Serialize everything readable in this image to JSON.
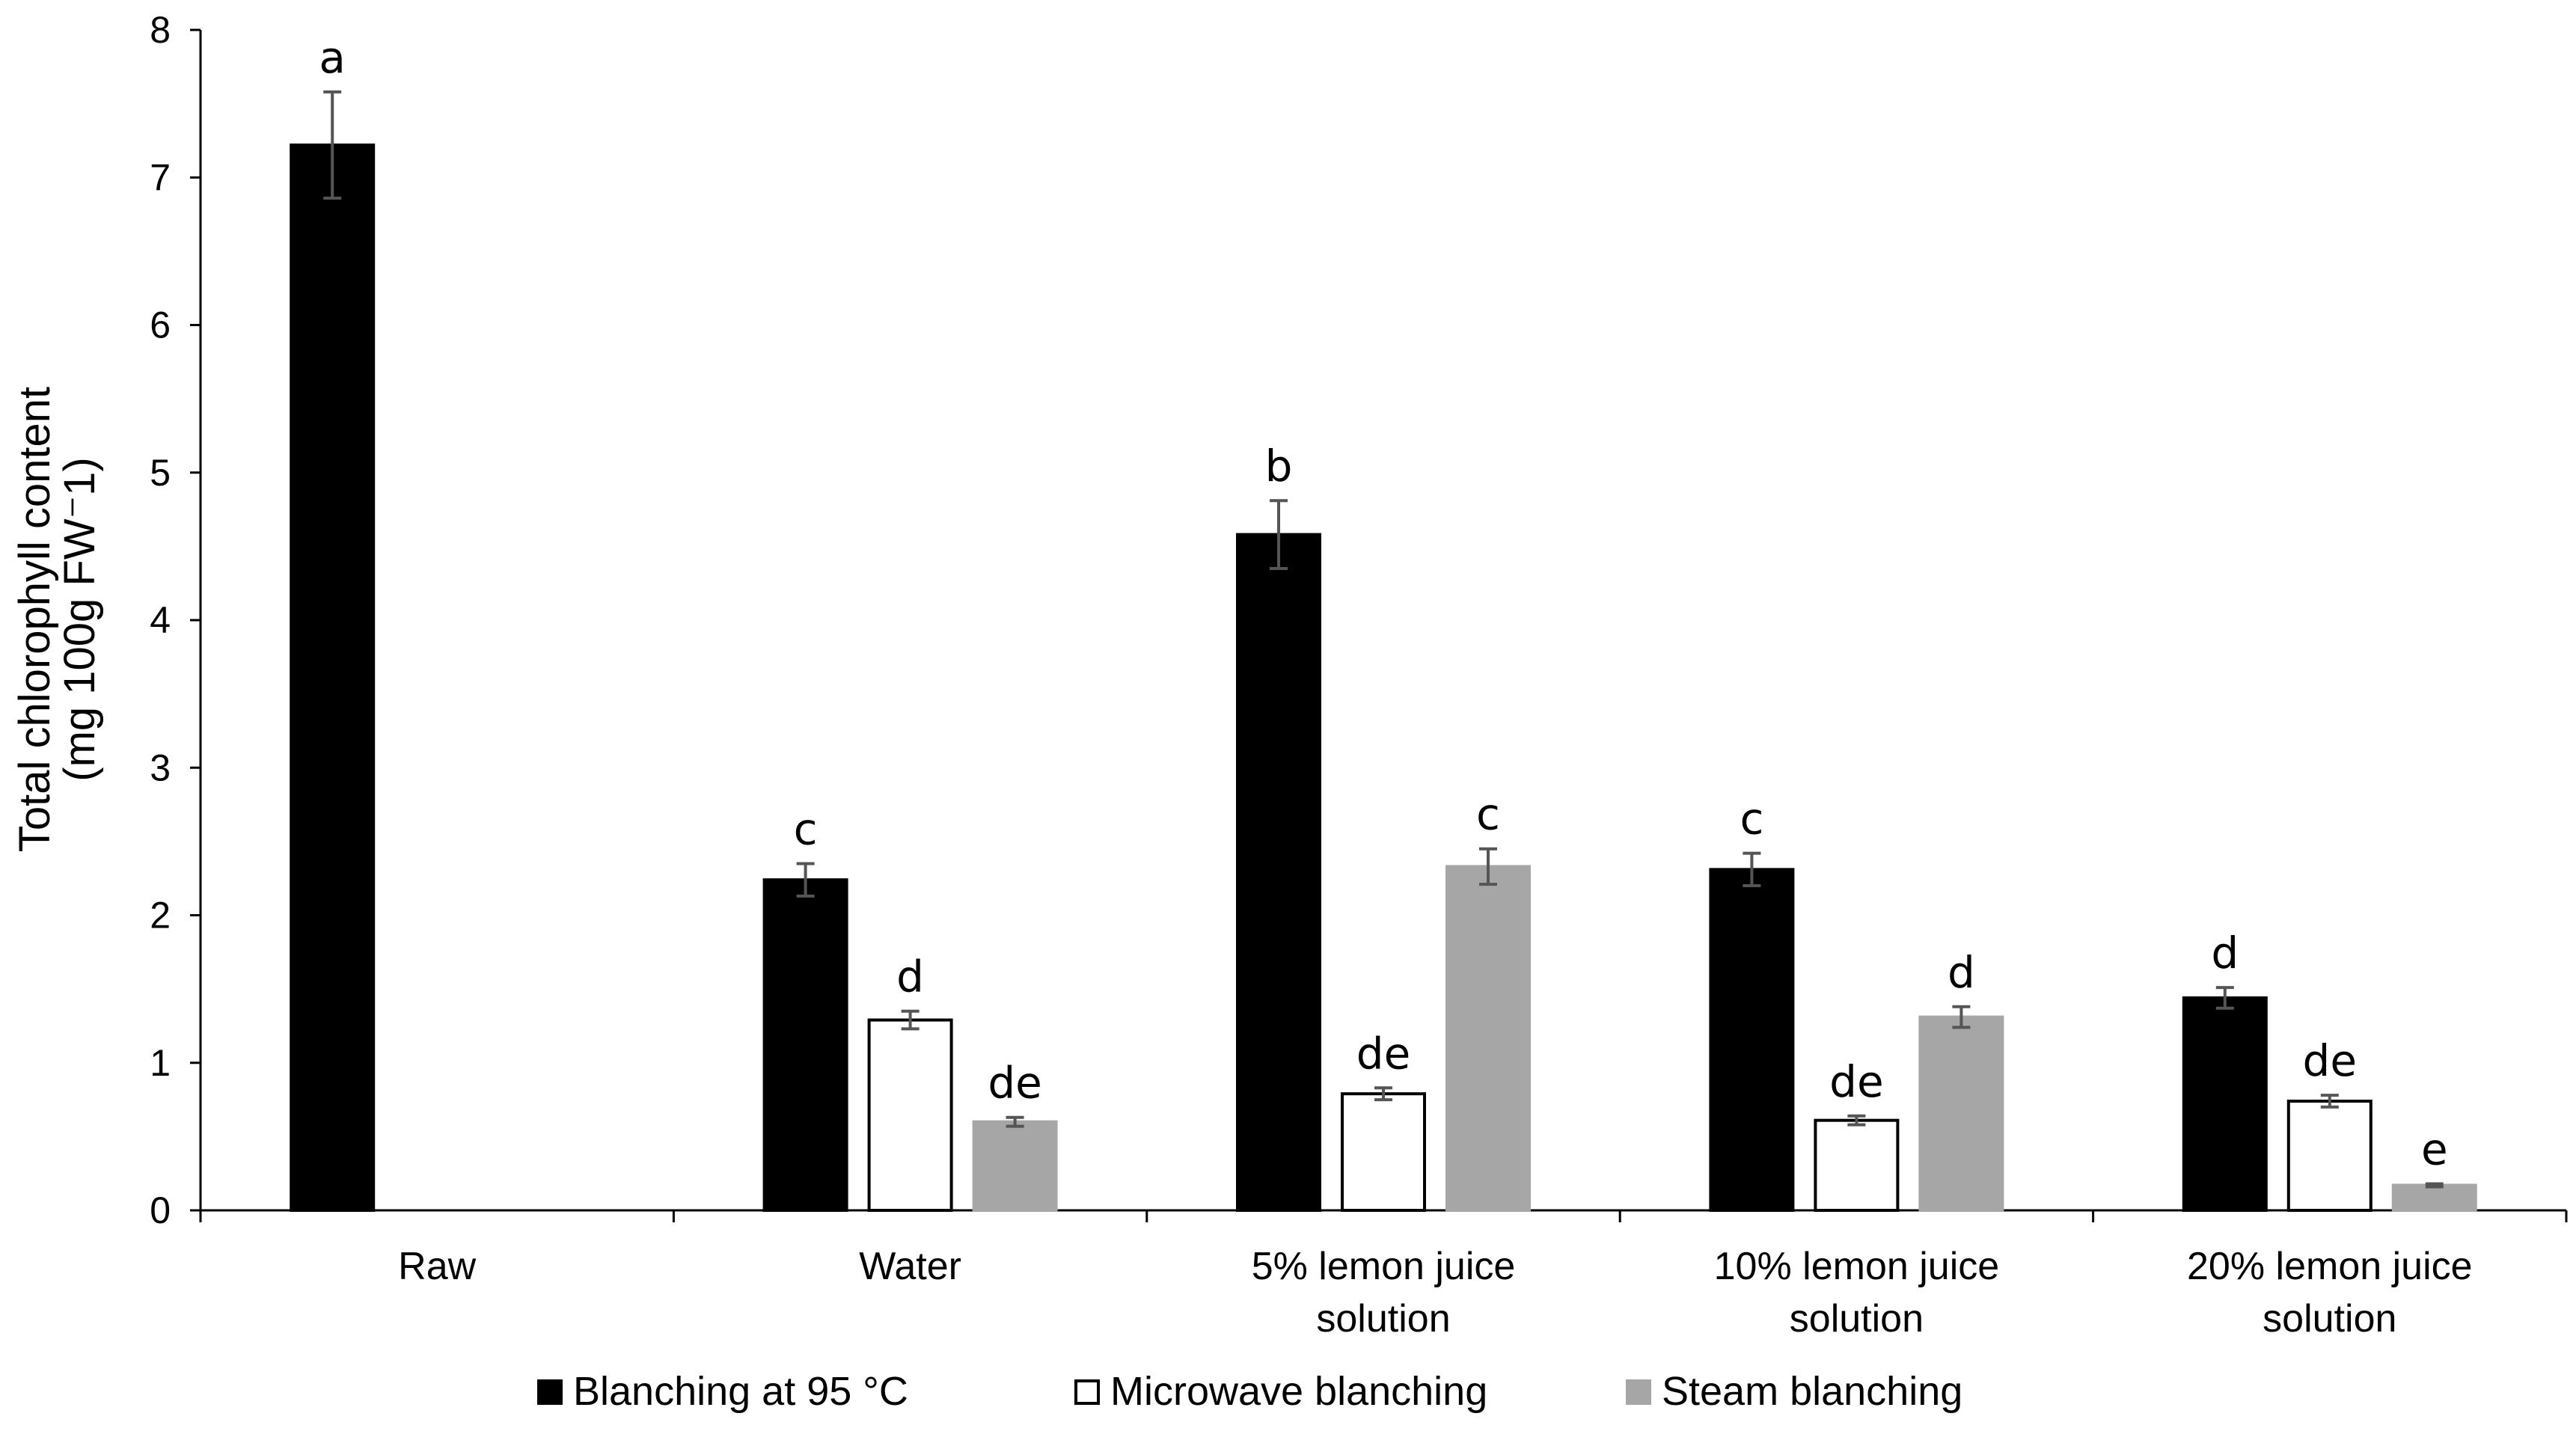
{
  "chart_data": {
    "type": "bar",
    "ylabel_line1": "Total chlorophyll content",
    "ylabel_line2": "(mg 100g FW⁻1)",
    "ylim": [
      0,
      8
    ],
    "yticks": [
      "0",
      "1",
      "2",
      "3",
      "4",
      "5",
      "6",
      "7",
      "8"
    ],
    "categories": [
      [
        "Raw"
      ],
      [
        "Water"
      ],
      [
        "5%  lemon juice",
        "solution"
      ],
      [
        "10% lemon juice",
        "solution"
      ],
      [
        "20% lemon juice",
        "solution"
      ]
    ],
    "series": [
      {
        "name": "Blanching at 95 °C",
        "color": "#000000",
        "stroke": "#000000",
        "values": [
          7.22,
          2.24,
          4.58,
          2.31,
          1.44
        ],
        "errors": [
          0.36,
          0.11,
          0.23,
          0.11,
          0.07
        ],
        "letters": [
          "a",
          "c",
          "b",
          "c",
          "d"
        ]
      },
      {
        "name": "Microwave blanching",
        "color": "#ffffff",
        "stroke": "#000000",
        "values": [
          null,
          1.29,
          0.79,
          0.61,
          0.74
        ],
        "errors": [
          null,
          0.06,
          0.04,
          0.03,
          0.04
        ],
        "letters": [
          null,
          "d",
          "de",
          "de",
          "de"
        ]
      },
      {
        "name": "Steam blanching",
        "color": "#a6a6a6",
        "stroke": "#a6a6a6",
        "values": [
          null,
          0.6,
          2.33,
          1.31,
          0.17
        ],
        "errors": [
          null,
          0.03,
          0.12,
          0.07,
          0.01
        ],
        "letters": [
          null,
          "de",
          "c",
          "d",
          "e"
        ]
      }
    ]
  }
}
